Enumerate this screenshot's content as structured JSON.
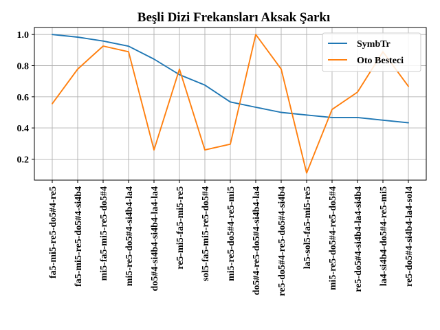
{
  "chart_data": {
    "type": "line",
    "title": "Beşli Dizi Frekansları Aksak Şarkı",
    "xlabel": "",
    "ylabel": "",
    "categories": [
      "fa5-mi5-re5-do5#4-re5",
      "fa5-mi5-re5-do5#4-si4b4",
      "mi5-fa5-mi5-re5-do5#4",
      "mi5-re5-do5#4-si4b4-la4",
      "do5#4-si4b4-si4b4-la4-la4",
      "re5-mi5-fa5-mi5-re5",
      "sol5-fa5-mi5-re5-do5#4",
      "mi5-re5-do5#4-re5-mi5",
      "do5#4-re5-do5#4-si4b4-la4",
      "re5-do5#4-re5-do5#4-si4b4",
      "la5-sol5-fa5-mi5-re5",
      "mi5-re5-do5#4-re5-do5#4",
      "re5-do5#4-si4b4-la4-si4b4",
      "la4-si4b4-do5#4-re5-mi5",
      "re5-do5#4-si4b4-la4-sol4"
    ],
    "series": [
      {
        "name": "SymbTr",
        "color": "#1f77b4",
        "values": [
          1.0,
          0.983,
          0.958,
          0.925,
          0.842,
          0.742,
          0.675,
          0.567,
          0.533,
          0.5,
          0.483,
          0.467,
          0.467,
          0.45,
          0.433
        ]
      },
      {
        "name": "Oto Besteci",
        "color": "#ff7f0e",
        "values": [
          0.556,
          0.778,
          0.926,
          0.889,
          0.259,
          0.778,
          0.259,
          0.296,
          1.0,
          0.778,
          0.111,
          0.519,
          0.63,
          0.889,
          0.667
        ]
      }
    ],
    "yticks": [
      "0.2",
      "0.4",
      "0.6",
      "0.8",
      "1.0"
    ],
    "ylim": [
      0.065,
      1.045
    ],
    "grid": true,
    "legend_position": "upper-right"
  }
}
